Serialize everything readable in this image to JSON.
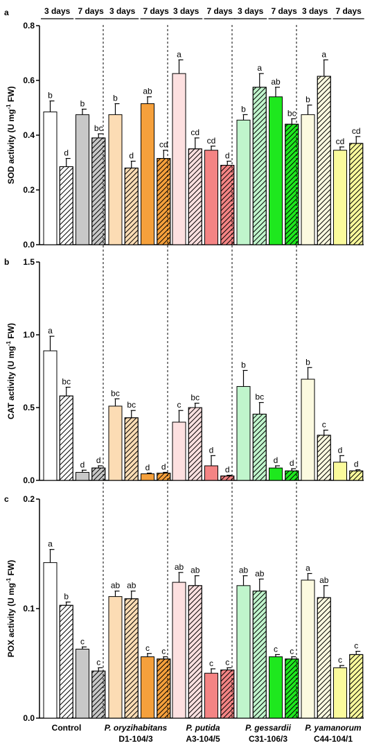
{
  "header": {
    "period_labels": [
      "3 days",
      "7 days",
      "3 days",
      "7 days",
      "3 days",
      "7 days",
      "3 days",
      "7 days",
      "3 days",
      "7 days"
    ]
  },
  "groups": [
    {
      "name_italic": "",
      "name_line1": "Control",
      "name_line2": "",
      "fill": "#ffffff",
      "fill2": "#c8c8c8"
    },
    {
      "name_italic": "P. oryzihabitans",
      "name_line1": "",
      "name_line2": "D1-104/3",
      "fill": "#fcdcb4",
      "fill2": "#f5a03c"
    },
    {
      "name_italic": "P. putida",
      "name_line1": "",
      "name_line2": "A3-104/5",
      "fill": "#fde0e0",
      "fill2": "#f48484"
    },
    {
      "name_italic": "P. gessardii",
      "name_line1": "",
      "name_line2": "C31-106/3",
      "fill": "#c0f5cc",
      "fill2": "#1ee81e"
    },
    {
      "name_italic": "P. yamanorum",
      "name_line1": "",
      "name_line2": "C44-104/1",
      "fill": "#fcfae0",
      "fill2": "#fafa9c"
    }
  ],
  "chart_data": [
    {
      "panel": "a",
      "type": "bar",
      "ylabel": "SOD activity (U mg",
      "ylabel_sup": "-1",
      "ylabel_end": " FW)",
      "ylim": [
        0,
        0.8
      ],
      "yticks": [
        "0.0",
        "0.2",
        "0.4",
        "0.6",
        "0.8"
      ],
      "ytick_values": [
        0,
        0.2,
        0.4,
        0.6,
        0.8
      ],
      "values": [
        0.485,
        0.285,
        0.475,
        0.39,
        0.475,
        0.28,
        0.515,
        0.315,
        0.625,
        0.35,
        0.345,
        0.29,
        0.455,
        0.575,
        0.54,
        0.44,
        0.475,
        0.615,
        0.345,
        0.37
      ],
      "errors": [
        0.04,
        0.03,
        0.02,
        0.015,
        0.04,
        0.025,
        0.025,
        0.03,
        0.05,
        0.04,
        0.015,
        0.015,
        0.02,
        0.05,
        0.035,
        0.02,
        0.035,
        0.06,
        0.012,
        0.025
      ],
      "labels": [
        "b",
        "d",
        "b",
        "bc",
        "b",
        "d",
        "ab",
        "cd",
        "a",
        "cd",
        "cd",
        "d",
        "b",
        "a",
        "ab",
        "bc",
        "b",
        "a",
        "cd",
        "cd"
      ]
    },
    {
      "panel": "b",
      "type": "bar",
      "ylabel": "CAT activity (U mg",
      "ylabel_sup": "-1",
      "ylabel_end": " FW)",
      "ylim": [
        0,
        1.5
      ],
      "yticks": [
        "0.0",
        "0.5",
        "1.0",
        "1.5"
      ],
      "ytick_values": [
        0,
        0.5,
        1.0,
        1.5
      ],
      "values": [
        0.89,
        0.58,
        0.055,
        0.085,
        0.51,
        0.43,
        0.045,
        0.05,
        0.4,
        0.5,
        0.1,
        0.03,
        0.645,
        0.455,
        0.085,
        0.065,
        0.695,
        0.31,
        0.125,
        0.065
      ],
      "errors": [
        0.1,
        0.06,
        0.015,
        0.015,
        0.05,
        0.05,
        0.005,
        0.005,
        0.08,
        0.03,
        0.07,
        0.005,
        0.11,
        0.08,
        0.015,
        0.015,
        0.08,
        0.035,
        0.045,
        0.008
      ],
      "labels": [
        "a",
        "bc",
        "d",
        "d",
        "bc",
        "bc",
        "d",
        "d",
        "c",
        "bc",
        "d",
        "d",
        "b",
        "bc",
        "d",
        "d",
        "b",
        "c",
        "d",
        "d"
      ]
    },
    {
      "panel": "c",
      "type": "bar",
      "ylabel": "POX activity (U mg",
      "ylabel_sup": "-1",
      "ylabel_end": " FW)",
      "ylim": [
        0,
        0.2
      ],
      "yticks": [
        "0.0",
        "0.1",
        "0.2"
      ],
      "ytick_values": [
        0,
        0.1,
        0.2
      ],
      "values": [
        0.142,
        0.103,
        0.063,
        0.043,
        0.111,
        0.109,
        0.056,
        0.054,
        0.124,
        0.121,
        0.041,
        0.044,
        0.121,
        0.116,
        0.056,
        0.054,
        0.126,
        0.11,
        0.046,
        0.058
      ],
      "errors": [
        0.012,
        0.003,
        0.002,
        0.003,
        0.005,
        0.007,
        0.003,
        0.002,
        0.009,
        0.009,
        0.004,
        0.002,
        0.009,
        0.011,
        0.002,
        0.002,
        0.006,
        0.011,
        0.002,
        0.003
      ],
      "labels": [
        "a",
        "b",
        "c",
        "c",
        "ab",
        "ab",
        "c",
        "c",
        "ab",
        "ab",
        "c",
        "c",
        "ab",
        "ab",
        "c",
        "c",
        "a",
        "ab",
        "c",
        "c"
      ]
    }
  ]
}
